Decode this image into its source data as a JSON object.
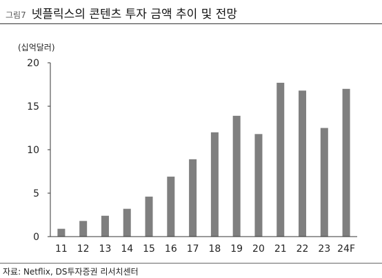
{
  "figure": {
    "label": "그림7",
    "title": "넷플릭스의 콘텐츠 투자 금액 추이 및 전망",
    "unit": "(십억달러)",
    "source": "자료: Netflix, DS투자증권 리서치센터"
  },
  "chart_data": {
    "type": "bar",
    "title": "넷플릭스의 콘텐츠 투자 금액 추이 및 전망",
    "ylabel": "(십억달러)",
    "xlabel": "",
    "categories": [
      "11",
      "12",
      "13",
      "14",
      "15",
      "16",
      "17",
      "18",
      "19",
      "20",
      "21",
      "22",
      "23",
      "24F"
    ],
    "values": [
      0.9,
      1.8,
      2.4,
      3.2,
      4.6,
      6.9,
      8.9,
      12.0,
      13.9,
      11.8,
      17.7,
      16.8,
      12.5,
      17.0
    ],
    "ylim": [
      0,
      20
    ],
    "yticks": [
      0,
      5,
      10,
      15,
      20
    ],
    "grid": false,
    "legend": "none",
    "colors": {
      "bar": "#7f7f7f",
      "axis": "#333333"
    }
  }
}
